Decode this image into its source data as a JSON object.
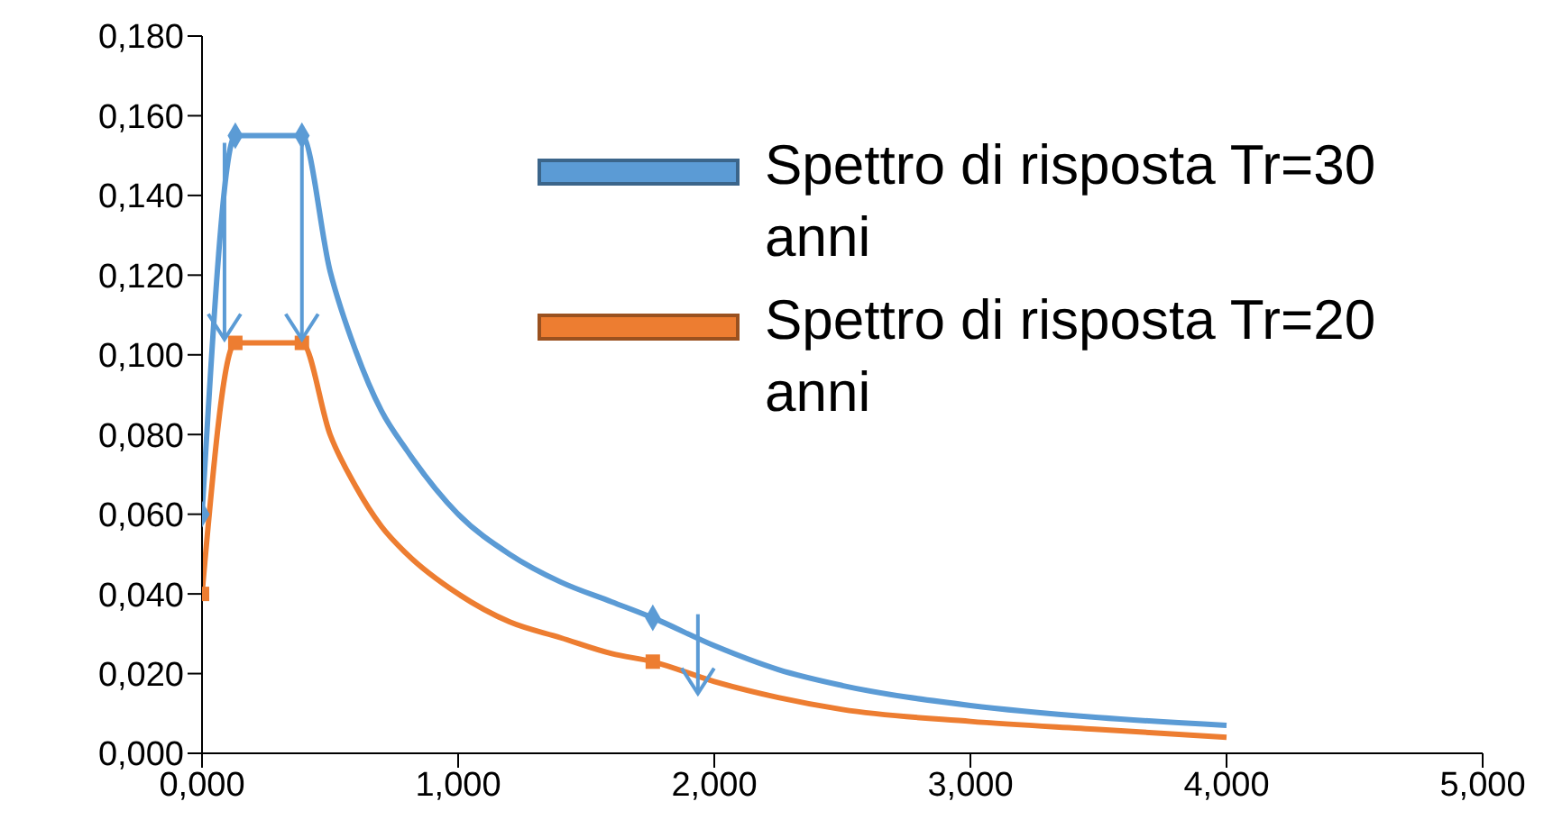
{
  "chart_data": {
    "type": "line",
    "xlim": [
      0,
      5
    ],
    "xticks": [
      {
        "value": 0,
        "label": "0,000"
      },
      {
        "value": 1,
        "label": "1,000"
      },
      {
        "value": 2,
        "label": "2,000"
      },
      {
        "value": 3,
        "label": "3,000"
      },
      {
        "value": 4,
        "label": "4,000"
      },
      {
        "value": 5,
        "label": "5,000"
      }
    ],
    "ylim": [
      0,
      0.18
    ],
    "yticks": [
      {
        "value": 0,
        "label": "0,000"
      },
      {
        "value": 0.02,
        "label": "0,020"
      },
      {
        "value": 0.04,
        "label": "0,040"
      },
      {
        "value": 0.06,
        "label": "0,060"
      },
      {
        "value": 0.08,
        "label": "0,080"
      },
      {
        "value": 0.1,
        "label": "0,100"
      },
      {
        "value": 0.12,
        "label": "0,120"
      },
      {
        "value": 0.14,
        "label": "0,140"
      },
      {
        "value": 0.16,
        "label": "0,160"
      },
      {
        "value": 0.18,
        "label": "0,180"
      }
    ],
    "grid": false,
    "legend": "top right",
    "series": [
      {
        "name": "Spettro di risposta  Tr=30 anni",
        "color": "#5b9bd5",
        "marker": "none",
        "x": [
          0,
          0.13,
          0.39,
          0.5,
          0.6,
          0.7,
          0.8,
          1.0,
          1.2,
          1.4,
          1.6,
          1.76,
          2.0,
          2.25,
          2.5,
          3.0,
          3.5,
          4.0
        ],
        "values": [
          0.06,
          0.155,
          0.155,
          0.121,
          0.101,
          0.086,
          0.076,
          0.06,
          0.05,
          0.043,
          0.038,
          0.034,
          0.027,
          0.021,
          0.017,
          0.012,
          0.009,
          0.007
        ]
      },
      {
        "name": "Spettro di risposta  Tr=20 anni",
        "color": "#ed7d31",
        "marker": "none",
        "x": [
          0,
          0.13,
          0.39,
          0.5,
          0.6,
          0.7,
          0.8,
          1.0,
          1.2,
          1.4,
          1.6,
          1.76,
          2.0,
          2.25,
          2.5,
          3.0,
          3.5,
          4.0
        ],
        "values": [
          0.04,
          0.103,
          0.103,
          0.08,
          0.067,
          0.057,
          0.05,
          0.04,
          0.033,
          0.029,
          0.025,
          0.023,
          0.018,
          0.014,
          0.011,
          0.008,
          0.006,
          0.004
        ]
      },
      {
        "type": "scatter",
        "color": "#5b9bd5",
        "marker": "diamond",
        "x": [
          0,
          0.13,
          0.39,
          1.76
        ],
        "values": [
          0.06,
          0.155,
          0.155,
          0.034
        ]
      },
      {
        "type": "scatter",
        "color": "#ed7d31",
        "marker": "square",
        "x": [
          0,
          0.13,
          0.39,
          1.76
        ],
        "values": [
          0.04,
          0.103,
          0.103,
          0.023
        ]
      }
    ]
  }
}
